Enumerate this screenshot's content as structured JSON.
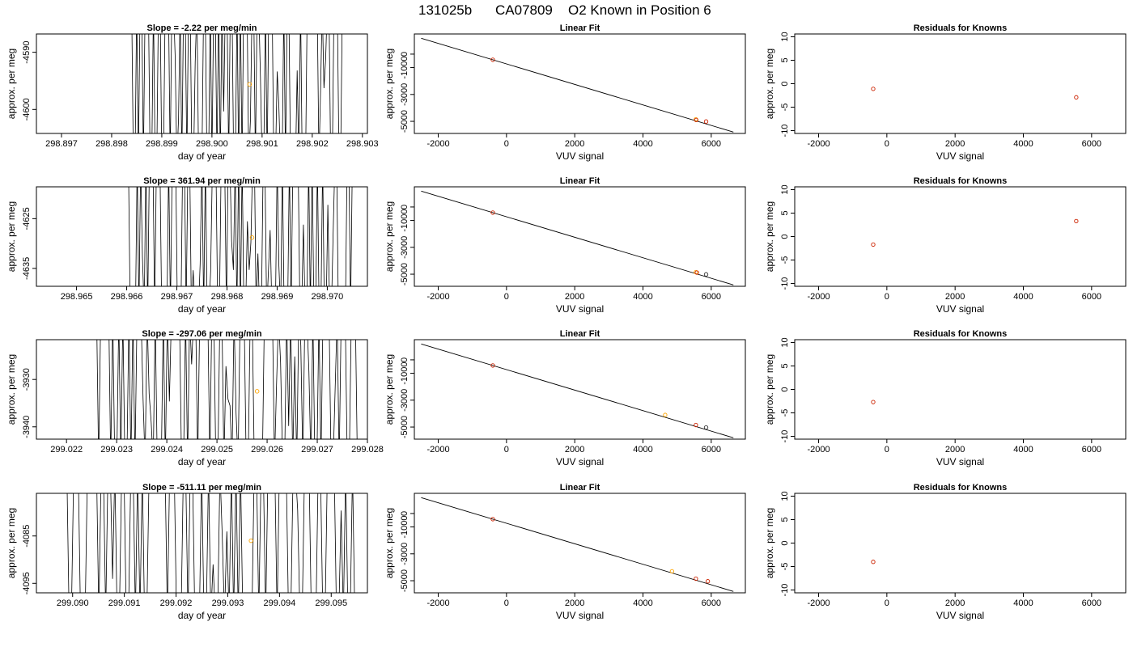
{
  "figure": {
    "title_parts": [
      "131025b",
      "CA07809",
      "O2 Known in Position  6"
    ]
  },
  "colors": {
    "frame": "#000000",
    "trace": "#000000",
    "point_orange": "#ffa500",
    "point_red": "#cc2200",
    "point_dark": "#333333"
  },
  "chart_data": [
    {
      "type": "line",
      "row": 0,
      "col": 0,
      "title": "Slope =  -2.22  per meg/min",
      "xlabel": "day of year",
      "ylabel": "approx. per meg",
      "xlim": [
        298.8965,
        298.9031
      ],
      "ylim": [
        -4604.2,
        -4586.8
      ],
      "xticks": [
        "298.897",
        "298.898",
        "298.899",
        "298.900",
        "298.901",
        "298.902",
        "298.903"
      ],
      "yticks": [
        -4600,
        -4590
      ],
      "trace_start": 298.8983,
      "trace_end": 298.9026,
      "seed": 11,
      "marker": {
        "x": 298.90075,
        "y": -4595.6,
        "color": "#ffa500"
      }
    },
    {
      "type": "scatter",
      "row": 0,
      "col": 1,
      "title": "Linear Fit",
      "xlabel": "VUV signal",
      "ylabel": "approx. per meg",
      "xlim": [
        -2700,
        7000
      ],
      "ylim": [
        -5900,
        1500
      ],
      "xticks": [
        -2000,
        0,
        2000,
        4000,
        6000
      ],
      "yticks": [
        -5000,
        -3000,
        -1000,
        0
      ],
      "fit_line": {
        "x": [
          -2500,
          6650
        ],
        "y": [
          1180,
          -5800
        ]
      },
      "points": [
        {
          "x": -400,
          "y": -420,
          "color": "#cc2200"
        },
        {
          "x": 5550,
          "y": -4850,
          "color": "#ffa500"
        },
        {
          "x": 5560,
          "y": -4900,
          "color": "#cc2200"
        },
        {
          "x": 5850,
          "y": -5010,
          "color": "#cc2200"
        }
      ]
    },
    {
      "type": "scatter",
      "row": 0,
      "col": 2,
      "title": "Residuals for Knowns",
      "xlabel": "VUV signal",
      "ylabel": "approx. per meg",
      "xlim": [
        -2700,
        7000
      ],
      "ylim": [
        -10.6,
        10.6
      ],
      "xticks": [
        -2000,
        0,
        2000,
        4000,
        6000
      ],
      "yticks": [
        -10,
        -5,
        0,
        5,
        10
      ],
      "points": [
        {
          "x": -400,
          "y": -1.1,
          "color": "#cc2200"
        },
        {
          "x": 5550,
          "y": -2.9,
          "color": "#cc2200"
        }
      ]
    },
    {
      "type": "line",
      "row": 1,
      "col": 0,
      "title": "Slope =  361.94  per meg/min",
      "xlabel": "day of year",
      "ylabel": "approx. per meg",
      "xlim": [
        298.9642,
        298.9708
      ],
      "ylim": [
        -4638.6,
        -4618.6
      ],
      "xticks": [
        "298.965",
        "298.966",
        "298.967",
        "298.968",
        "298.969",
        "298.970"
      ],
      "yticks": [
        -4635,
        -4625
      ],
      "trace_start": 298.966,
      "trace_end": 298.9705,
      "seed": 23,
      "marker": {
        "x": 298.9685,
        "y": -4628.8,
        "color": "#ffa500"
      }
    },
    {
      "type": "scatter",
      "row": 1,
      "col": 1,
      "title": "Linear Fit",
      "xlabel": "VUV signal",
      "ylabel": "approx. per meg",
      "xlim": [
        -2700,
        7000
      ],
      "ylim": [
        -5900,
        1500
      ],
      "xticks": [
        -2000,
        0,
        2000,
        4000,
        6000
      ],
      "yticks": [
        -5000,
        -3000,
        -1000,
        0
      ],
      "fit_line": {
        "x": [
          -2500,
          6650
        ],
        "y": [
          1180,
          -5800
        ]
      },
      "points": [
        {
          "x": -400,
          "y": -420,
          "color": "#cc2200"
        },
        {
          "x": 5550,
          "y": -4850,
          "color": "#ffa500"
        },
        {
          "x": 5580,
          "y": -4880,
          "color": "#cc2200"
        },
        {
          "x": 5850,
          "y": -5010,
          "color": "#333333"
        }
      ]
    },
    {
      "type": "scatter",
      "row": 1,
      "col": 2,
      "title": "Residuals for Knowns",
      "xlabel": "VUV signal",
      "ylabel": "approx. per meg",
      "xlim": [
        -2700,
        7000
      ],
      "ylim": [
        -10.6,
        10.6
      ],
      "xticks": [
        -2000,
        0,
        2000,
        4000,
        6000
      ],
      "yticks": [
        -10,
        -5,
        0,
        5,
        10
      ],
      "points": [
        {
          "x": -400,
          "y": -1.7,
          "color": "#cc2200"
        },
        {
          "x": 5550,
          "y": 3.3,
          "color": "#cc2200"
        }
      ]
    },
    {
      "type": "line",
      "row": 2,
      "col": 0,
      "title": "Slope =  -297.06  per meg/min",
      "xlabel": "day of year",
      "ylabel": "approx. per meg",
      "xlim": [
        299.0214,
        299.028
      ],
      "ylim": [
        -3942.6,
        -3921.6
      ],
      "xticks": [
        "299.022",
        "299.023",
        "299.024",
        "299.025",
        "299.026",
        "299.027",
        "299.028"
      ],
      "yticks": [
        -3940,
        -3930
      ],
      "trace_start": 299.0226,
      "trace_end": 299.0278,
      "seed": 37,
      "marker": {
        "x": 299.0258,
        "y": -3932.5,
        "color": "#ffa500"
      }
    },
    {
      "type": "scatter",
      "row": 2,
      "col": 1,
      "title": "Linear Fit",
      "xlabel": "VUV signal",
      "ylabel": "approx. per meg",
      "xlim": [
        -2700,
        7000
      ],
      "ylim": [
        -5900,
        1500
      ],
      "xticks": [
        -2000,
        0,
        2000,
        4000,
        6000
      ],
      "yticks": [
        -5000,
        -3000,
        -1000,
        0
      ],
      "fit_line": {
        "x": [
          -2500,
          6650
        ],
        "y": [
          1180,
          -5800
        ]
      },
      "points": [
        {
          "x": -400,
          "y": -420,
          "color": "#cc2200"
        },
        {
          "x": 4650,
          "y": -4100,
          "color": "#ffa500"
        },
        {
          "x": 5550,
          "y": -4850,
          "color": "#cc2200"
        },
        {
          "x": 5850,
          "y": -5030,
          "color": "#333333"
        }
      ]
    },
    {
      "type": "scatter",
      "row": 2,
      "col": 2,
      "title": "Residuals for Knowns",
      "xlabel": "VUV signal",
      "ylabel": "approx. per meg",
      "xlim": [
        -2700,
        7000
      ],
      "ylim": [
        -10.6,
        10.6
      ],
      "xticks": [
        -2000,
        0,
        2000,
        4000,
        6000
      ],
      "yticks": [
        -10,
        -5,
        0,
        5,
        10
      ],
      "points": [
        {
          "x": -400,
          "y": -2.7,
          "color": "#cc2200"
        }
      ]
    },
    {
      "type": "line",
      "row": 3,
      "col": 0,
      "title": "Slope =  -511.11  per meg/min",
      "xlabel": "day of year",
      "ylabel": "approx. per meg",
      "xlim": [
        299.0893,
        299.0957
      ],
      "ylim": [
        -4097.0,
        -4076.0
      ],
      "xticks": [
        "299.090",
        "299.091",
        "299.092",
        "299.093",
        "299.094",
        "299.095"
      ],
      "yticks": [
        -4095,
        -4085
      ],
      "trace_start": 299.0898,
      "trace_end": 299.0955,
      "seed": 53,
      "marker": {
        "x": 299.09345,
        "y": -4086.0,
        "color": "#ffa500"
      }
    },
    {
      "type": "scatter",
      "row": 3,
      "col": 1,
      "title": "Linear Fit",
      "xlabel": "VUV signal",
      "ylabel": "approx. per meg",
      "xlim": [
        -2700,
        7000
      ],
      "ylim": [
        -5900,
        1500
      ],
      "xticks": [
        -2000,
        0,
        2000,
        4000,
        6000
      ],
      "yticks": [
        -5000,
        -3000,
        -1000,
        0
      ],
      "fit_line": {
        "x": [
          -2500,
          6650
        ],
        "y": [
          1180,
          -5800
        ]
      },
      "points": [
        {
          "x": -400,
          "y": -420,
          "color": "#cc2200"
        },
        {
          "x": 4850,
          "y": -4300,
          "color": "#ffa500"
        },
        {
          "x": 5550,
          "y": -4850,
          "color": "#cc2200"
        },
        {
          "x": 5900,
          "y": -5040,
          "color": "#cc2200"
        }
      ]
    },
    {
      "type": "scatter",
      "row": 3,
      "col": 2,
      "title": "Residuals for Knowns",
      "xlabel": "VUV signal",
      "ylabel": "approx. per meg",
      "xlim": [
        -2700,
        7000
      ],
      "ylim": [
        -10.6,
        10.6
      ],
      "xticks": [
        -2000,
        0,
        2000,
        4000,
        6000
      ],
      "yticks": [
        -10,
        -5,
        0,
        5,
        10
      ],
      "points": [
        {
          "x": -400,
          "y": -4.0,
          "color": "#cc2200"
        }
      ]
    }
  ]
}
